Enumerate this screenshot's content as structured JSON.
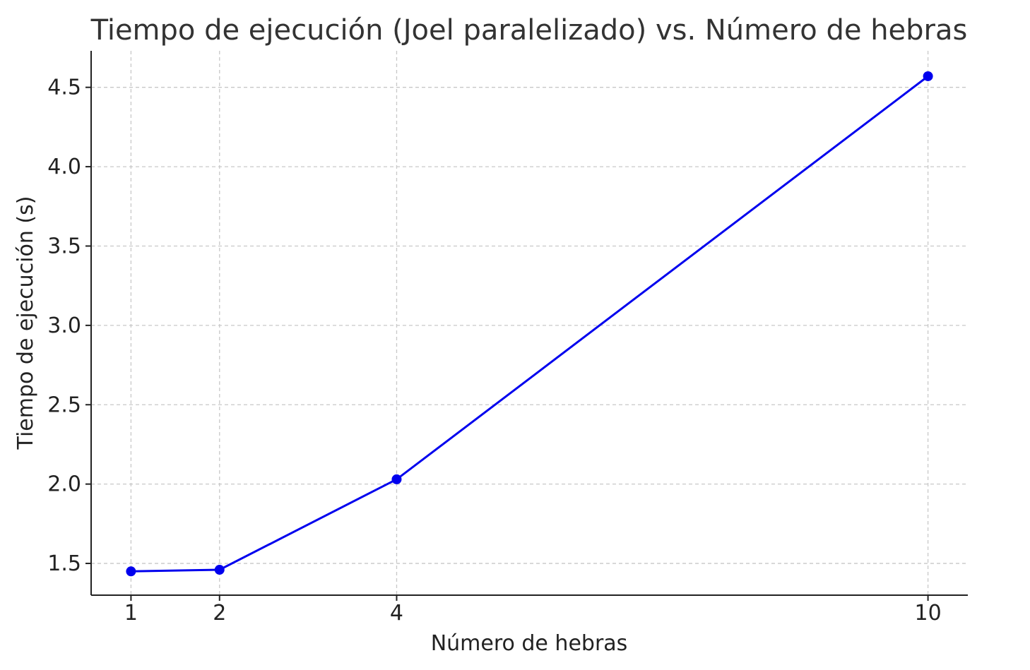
{
  "chart_data": {
    "type": "line",
    "title": "Tiempo de ejecución (Joel paralelizado) vs. Número de hebras",
    "xlabel": "Número de hebras",
    "ylabel": "Tiempo de ejecución (s)",
    "x": [
      1,
      2,
      4,
      10
    ],
    "series": [
      {
        "values": [
          1.45,
          1.46,
          2.03,
          4.57
        ],
        "color": "#0000ee",
        "marker": "circle"
      }
    ],
    "xticks": [
      1,
      2,
      4,
      10
    ],
    "xtick_labels": [
      "1",
      "2",
      "4",
      "10"
    ],
    "yticks": [
      1.5,
      2.0,
      2.5,
      3.0,
      3.5,
      4.0,
      4.5
    ],
    "ytick_labels": [
      "1.5",
      "2.0",
      "2.5",
      "3.0",
      "3.5",
      "4.0",
      "4.5"
    ],
    "xlim": [
      0.55,
      10.45
    ],
    "ylim": [
      1.3,
      4.73
    ],
    "grid": true,
    "legend": "none"
  }
}
